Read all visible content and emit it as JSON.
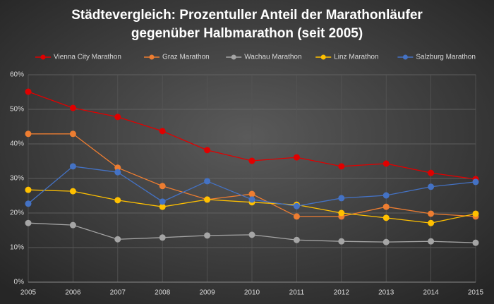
{
  "chart_data": {
    "type": "line",
    "title": "Städtevergleich: Prozentuller Anteil der Marathonläufer gegenüber Halbmarathon (seit 2005)",
    "x": [
      2005,
      2006,
      2007,
      2008,
      2009,
      2010,
      2011,
      2012,
      2013,
      2014,
      2015
    ],
    "xlim": [
      2005,
      2015
    ],
    "ylim": [
      0,
      60
    ],
    "yticks": [
      {
        "value": 0,
        "label": "0%"
      },
      {
        "value": 10,
        "label": "10%"
      },
      {
        "value": 20,
        "label": "20%"
      },
      {
        "value": 30,
        "label": "30%"
      },
      {
        "value": 40,
        "label": "40%"
      },
      {
        "value": 50,
        "label": "50%"
      },
      {
        "value": 60,
        "label": "60%"
      }
    ],
    "grid": true,
    "legend": "top",
    "series": [
      {
        "name": "Vienna City Marathon",
        "color": "#e00000",
        "values": [
          55.1,
          50.4,
          47.8,
          43.7,
          38.2,
          35.1,
          36.1,
          33.5,
          34.3,
          31.6,
          29.8
        ]
      },
      {
        "name": "Graz Marathon",
        "color": "#ed7d31",
        "values": [
          42.9,
          42.9,
          33.1,
          27.8,
          23.9,
          25.5,
          19.0,
          19.0,
          21.8,
          19.8,
          19.0
        ]
      },
      {
        "name": "Wachau Marathon",
        "color": "#a5a5a5",
        "values": [
          17.1,
          16.5,
          12.4,
          12.9,
          13.5,
          13.7,
          12.2,
          11.8,
          11.6,
          11.8,
          11.4
        ]
      },
      {
        "name": "Linz Marathon",
        "color": "#ffc000",
        "values": [
          26.7,
          26.3,
          23.7,
          21.8,
          23.9,
          23.1,
          22.4,
          20.0,
          18.6,
          17.1,
          19.8
        ]
      },
      {
        "name": "Salzburg Marathon",
        "color": "#4472c4",
        "values": [
          22.7,
          33.5,
          31.8,
          23.3,
          29.2,
          23.9,
          22.0,
          24.3,
          25.1,
          27.6,
          29.0
        ]
      }
    ]
  }
}
